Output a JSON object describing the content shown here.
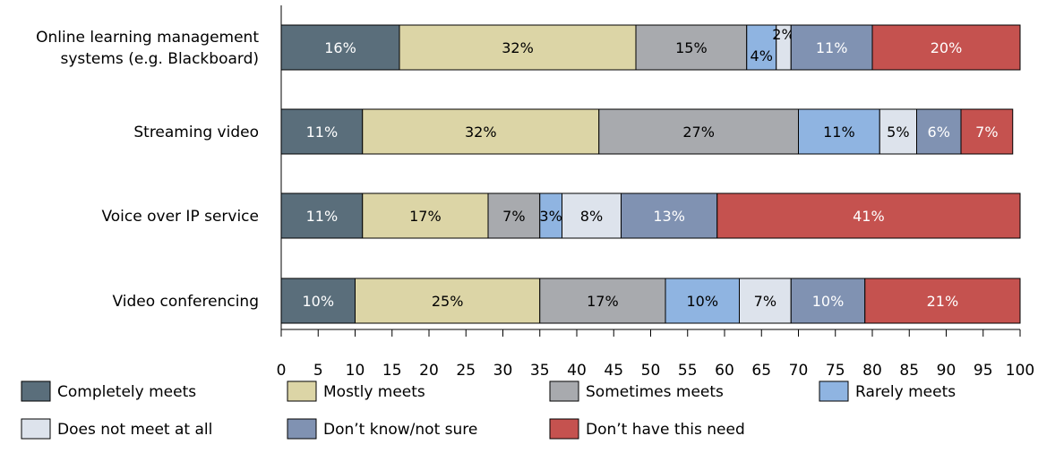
{
  "chart_data": {
    "type": "bar",
    "orientation": "horizontal",
    "stacked": true,
    "title": "",
    "xlabel": "",
    "ylabel": "",
    "xlim": [
      0,
      100
    ],
    "xticks": [
      0,
      5,
      10,
      15,
      20,
      25,
      30,
      35,
      40,
      45,
      50,
      55,
      60,
      65,
      70,
      75,
      80,
      85,
      90,
      95,
      100
    ],
    "grid": false,
    "legend_position": "bottom",
    "categories": [
      [
        "Online learning management",
        "systems (e.g. Blackboard)"
      ],
      [
        "Streaming video"
      ],
      [
        "Voice over IP service"
      ],
      [
        "Video conferencing"
      ]
    ],
    "series": [
      {
        "name": "Completely meets",
        "color": "#5a6e7b",
        "label_color": "#ffffff",
        "values": [
          16,
          11,
          11,
          10
        ]
      },
      {
        "name": "Mostly meets",
        "color": "#dcd5a6",
        "label_color": "#000000",
        "values": [
          32,
          32,
          17,
          25
        ]
      },
      {
        "name": "Sometimes meets",
        "color": "#a8aaae",
        "label_color": "#000000",
        "values": [
          15,
          27,
          7,
          17
        ]
      },
      {
        "name": "Rarely meets",
        "color": "#8fb4e1",
        "label_color": "#000000",
        "values": [
          4,
          11,
          3,
          10
        ]
      },
      {
        "name": "Does not meet at all",
        "color": "#dde3ec",
        "label_color": "#000000",
        "values": [
          2,
          5,
          8,
          7
        ]
      },
      {
        "name": "Don’t know/not sure",
        "color": "#8092b2",
        "label_color": "#ffffff",
        "values": [
          11,
          6,
          13,
          10
        ]
      },
      {
        "name": "Don’t have this need",
        "color": "#c5524f",
        "label_color": "#ffffff",
        "values": [
          20,
          7,
          41,
          21
        ]
      }
    ],
    "value_suffix": "%",
    "annotations": {
      "label_offsets": {
        "0-3": "below",
        "0-4": "above"
      }
    }
  }
}
